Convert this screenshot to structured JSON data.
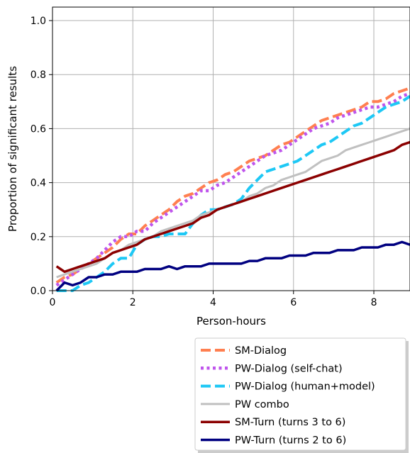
{
  "chart_data": {
    "type": "line",
    "xlabel": "Person-hours",
    "ylabel": "Proportion of significant results",
    "xlim": [
      0,
      8.9
    ],
    "ylim": [
      0,
      1.05
    ],
    "xticks": [
      "0",
      "2",
      "4",
      "6",
      "8"
    ],
    "yticks": [
      "0.0",
      "0.2",
      "0.4",
      "0.6",
      "0.8",
      "1.0"
    ],
    "grid": true,
    "legend_position": "below plot, right",
    "series": [
      {
        "name": "SM-Dialog",
        "color": "#ff7f50",
        "style": "dashed",
        "x": [
          0.1,
          0.3,
          0.5,
          0.7,
          0.9,
          1.1,
          1.3,
          1.5,
          1.7,
          1.9,
          2.1,
          2.3,
          2.5,
          2.7,
          2.9,
          3.1,
          3.3,
          3.5,
          3.7,
          3.9,
          4.1,
          4.3,
          4.5,
          4.7,
          4.9,
          5.1,
          5.3,
          5.5,
          5.7,
          5.9,
          6.1,
          6.3,
          6.5,
          6.7,
          6.9,
          7.1,
          7.3,
          7.5,
          7.7,
          7.9,
          8.1,
          8.3,
          8.5,
          8.7,
          8.9
        ],
        "y": [
          0.03,
          0.05,
          0.06,
          0.08,
          0.1,
          0.12,
          0.14,
          0.16,
          0.19,
          0.21,
          0.21,
          0.24,
          0.26,
          0.28,
          0.3,
          0.33,
          0.35,
          0.36,
          0.38,
          0.4,
          0.41,
          0.43,
          0.44,
          0.46,
          0.48,
          0.49,
          0.5,
          0.52,
          0.54,
          0.55,
          0.57,
          0.59,
          0.61,
          0.63,
          0.64,
          0.65,
          0.66,
          0.67,
          0.68,
          0.7,
          0.7,
          0.71,
          0.73,
          0.74,
          0.75
        ]
      },
      {
        "name": "PW-Dialog (self-chat)",
        "color": "#bf55ec",
        "style": "dotted",
        "x": [
          0.1,
          0.3,
          0.5,
          0.7,
          0.9,
          1.1,
          1.3,
          1.5,
          1.7,
          1.9,
          2.1,
          2.3,
          2.5,
          2.7,
          2.9,
          3.1,
          3.3,
          3.5,
          3.7,
          3.9,
          4.1,
          4.3,
          4.5,
          4.7,
          4.9,
          5.1,
          5.3,
          5.5,
          5.7,
          5.9,
          6.1,
          6.3,
          6.5,
          6.7,
          6.9,
          7.1,
          7.3,
          7.5,
          7.7,
          7.9,
          8.1,
          8.3,
          8.5,
          8.7,
          8.9
        ],
        "y": [
          0.02,
          0.04,
          0.06,
          0.08,
          0.1,
          0.12,
          0.15,
          0.18,
          0.2,
          0.2,
          0.22,
          0.22,
          0.25,
          0.27,
          0.29,
          0.31,
          0.33,
          0.35,
          0.37,
          0.37,
          0.39,
          0.4,
          0.42,
          0.44,
          0.46,
          0.48,
          0.5,
          0.51,
          0.52,
          0.54,
          0.56,
          0.58,
          0.6,
          0.61,
          0.62,
          0.64,
          0.65,
          0.66,
          0.67,
          0.68,
          0.68,
          0.69,
          0.7,
          0.72,
          0.73
        ]
      },
      {
        "name": "PW-Dialog (human+model)",
        "color": "#1ec8f5",
        "style": "dashed",
        "x": [
          0.1,
          0.3,
          0.5,
          0.7,
          0.9,
          1.1,
          1.3,
          1.5,
          1.7,
          1.9,
          2.1,
          2.3,
          2.5,
          2.7,
          2.9,
          3.1,
          3.3,
          3.5,
          3.7,
          3.9,
          4.1,
          4.3,
          4.5,
          4.7,
          4.9,
          5.1,
          5.3,
          5.5,
          5.7,
          5.9,
          6.1,
          6.3,
          6.5,
          6.7,
          6.9,
          7.1,
          7.3,
          7.5,
          7.7,
          7.9,
          8.1,
          8.3,
          8.5,
          8.7,
          8.9
        ],
        "y": [
          0.0,
          0.0,
          0.0,
          0.02,
          0.03,
          0.05,
          0.07,
          0.1,
          0.12,
          0.12,
          0.17,
          0.19,
          0.2,
          0.2,
          0.21,
          0.21,
          0.21,
          0.25,
          0.28,
          0.3,
          0.3,
          0.31,
          0.32,
          0.34,
          0.38,
          0.41,
          0.44,
          0.45,
          0.46,
          0.47,
          0.48,
          0.5,
          0.52,
          0.54,
          0.55,
          0.57,
          0.59,
          0.61,
          0.62,
          0.64,
          0.66,
          0.68,
          0.69,
          0.7,
          0.72
        ]
      },
      {
        "name": "PW combo",
        "color": "#c0c0c0",
        "style": "solid",
        "x": [
          0.1,
          0.3,
          0.5,
          0.7,
          0.9,
          1.1,
          1.3,
          1.5,
          1.7,
          1.9,
          2.1,
          2.3,
          2.5,
          2.7,
          2.9,
          3.1,
          3.3,
          3.5,
          3.7,
          3.9,
          4.1,
          4.3,
          4.5,
          4.7,
          4.9,
          5.1,
          5.3,
          5.5,
          5.7,
          5.9,
          6.1,
          6.3,
          6.5,
          6.7,
          6.9,
          7.1,
          7.3,
          7.5,
          7.7,
          7.9,
          8.1,
          8.3,
          8.5,
          8.7,
          8.9
        ],
        "y": [
          0.05,
          0.06,
          0.07,
          0.08,
          0.09,
          0.1,
          0.12,
          0.14,
          0.15,
          0.17,
          0.18,
          0.19,
          0.2,
          0.22,
          0.23,
          0.24,
          0.25,
          0.26,
          0.28,
          0.29,
          0.3,
          0.31,
          0.32,
          0.33,
          0.35,
          0.36,
          0.38,
          0.39,
          0.41,
          0.42,
          0.43,
          0.44,
          0.46,
          0.48,
          0.49,
          0.5,
          0.52,
          0.53,
          0.54,
          0.55,
          0.56,
          0.57,
          0.58,
          0.59,
          0.6
        ]
      },
      {
        "name": "SM-Turn (turns 3 to 6)",
        "color": "#8b0000",
        "style": "solid",
        "x": [
          0.1,
          0.3,
          0.5,
          0.7,
          0.9,
          1.1,
          1.3,
          1.5,
          1.7,
          1.9,
          2.1,
          2.3,
          2.5,
          2.7,
          2.9,
          3.1,
          3.3,
          3.5,
          3.7,
          3.9,
          4.1,
          4.3,
          4.5,
          4.7,
          4.9,
          5.1,
          5.3,
          5.5,
          5.7,
          5.9,
          6.1,
          6.3,
          6.5,
          6.7,
          6.9,
          7.1,
          7.3,
          7.5,
          7.7,
          7.9,
          8.1,
          8.3,
          8.5,
          8.7,
          8.9
        ],
        "y": [
          0.09,
          0.07,
          0.08,
          0.09,
          0.1,
          0.11,
          0.12,
          0.14,
          0.15,
          0.16,
          0.17,
          0.19,
          0.2,
          0.21,
          0.22,
          0.23,
          0.24,
          0.25,
          0.27,
          0.28,
          0.3,
          0.31,
          0.32,
          0.33,
          0.34,
          0.35,
          0.36,
          0.37,
          0.38,
          0.39,
          0.4,
          0.41,
          0.42,
          0.43,
          0.44,
          0.45,
          0.46,
          0.47,
          0.48,
          0.49,
          0.5,
          0.51,
          0.52,
          0.54,
          0.55
        ]
      },
      {
        "name": "PW-Turn (turns 2 to 6)",
        "color": "#000080",
        "style": "solid",
        "x": [
          0.1,
          0.3,
          0.5,
          0.7,
          0.9,
          1.1,
          1.3,
          1.5,
          1.7,
          1.9,
          2.1,
          2.3,
          2.5,
          2.7,
          2.9,
          3.1,
          3.3,
          3.5,
          3.7,
          3.9,
          4.1,
          4.3,
          4.5,
          4.7,
          4.9,
          5.1,
          5.3,
          5.5,
          5.7,
          5.9,
          6.1,
          6.3,
          6.5,
          6.7,
          6.9,
          7.1,
          7.3,
          7.5,
          7.7,
          7.9,
          8.1,
          8.3,
          8.5,
          8.7,
          8.9
        ],
        "y": [
          0.0,
          0.03,
          0.02,
          0.03,
          0.05,
          0.05,
          0.06,
          0.06,
          0.07,
          0.07,
          0.07,
          0.08,
          0.08,
          0.08,
          0.09,
          0.08,
          0.09,
          0.09,
          0.09,
          0.1,
          0.1,
          0.1,
          0.1,
          0.1,
          0.11,
          0.11,
          0.12,
          0.12,
          0.12,
          0.13,
          0.13,
          0.13,
          0.14,
          0.14,
          0.14,
          0.15,
          0.15,
          0.15,
          0.16,
          0.16,
          0.16,
          0.17,
          0.17,
          0.18,
          0.17
        ]
      }
    ]
  }
}
